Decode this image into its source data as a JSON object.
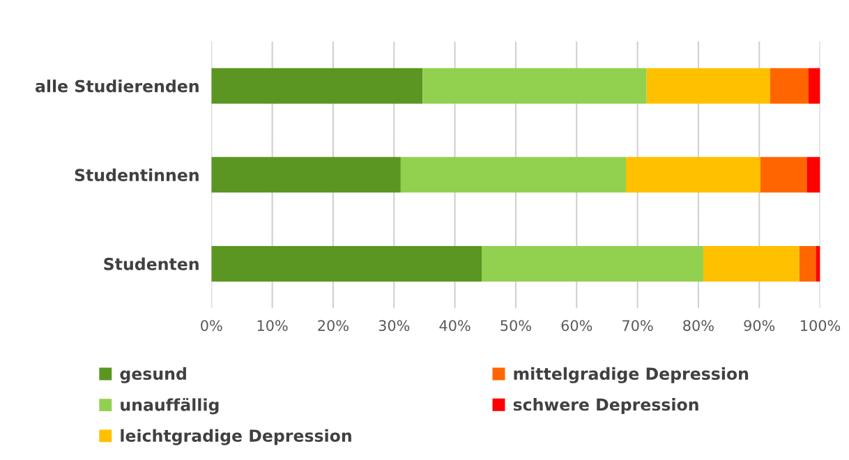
{
  "chart_data": {
    "type": "bar",
    "orientation": "horizontal",
    "stacked": true,
    "categories": [
      "alle Studierenden",
      "Studentinnen",
      "Studenten"
    ],
    "series": [
      {
        "name": "gesund",
        "color": "#5a9621",
        "values": [
          34.7,
          31.1,
          44.4
        ]
      },
      {
        "name": "unauffällig",
        "color": "#92d050",
        "values": [
          36.8,
          37.0,
          36.4
        ]
      },
      {
        "name": "leichtgradige Depression",
        "color": "#ffc000",
        "values": [
          20.3,
          22.1,
          15.8
        ]
      },
      {
        "name": "mittelgradige Depression",
        "color": "#ff6600",
        "values": [
          6.3,
          7.6,
          2.7
        ]
      },
      {
        "name": "schwere Depression",
        "color": "#ff0000",
        "values": [
          1.9,
          2.2,
          0.7
        ]
      }
    ],
    "xlim": [
      0,
      100
    ],
    "xticks": [
      {
        "value": 0,
        "label": "0%"
      },
      {
        "value": 10,
        "label": "10%"
      },
      {
        "value": 20,
        "label": "20%"
      },
      {
        "value": 30,
        "label": "30%"
      },
      {
        "value": 40,
        "label": "40%"
      },
      {
        "value": 50,
        "label": "50%"
      },
      {
        "value": 60,
        "label": "60%"
      },
      {
        "value": 70,
        "label": "70%"
      },
      {
        "value": 80,
        "label": "80%"
      },
      {
        "value": 90,
        "label": "90%"
      },
      {
        "value": 100,
        "label": "100%"
      }
    ],
    "grid": "x",
    "legend": "bottom"
  }
}
